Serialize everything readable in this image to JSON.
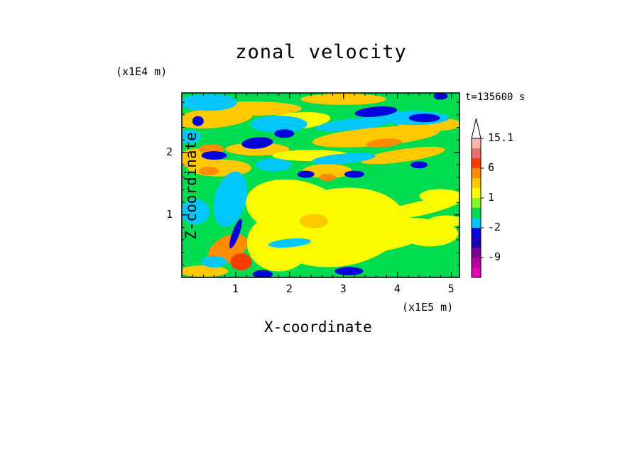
{
  "chart_data": {
    "type": "heatmap",
    "title": "zonal velocity",
    "xlabel": "X-coordinate",
    "ylabel": "Z-coordinate",
    "x_multiplier": "(x1E5 m)",
    "y_multiplier": "(x1E4 m)",
    "time_label": "t=135600 s",
    "xlim": [
      0,
      5.15
    ],
    "ylim": [
      0,
      2.95
    ],
    "x_ticks": [
      "1",
      "2",
      "3",
      "4",
      "5"
    ],
    "y_ticks": [
      "1",
      "2"
    ],
    "colorbar": {
      "labels": [
        "15.1",
        "6",
        "1",
        "-2",
        "-9"
      ],
      "levels": [
        -15,
        -12,
        -9,
        -6,
        -4,
        -2,
        -1,
        0,
        1,
        2,
        4,
        6,
        9,
        12,
        15.1
      ],
      "colors": [
        "#e600b4",
        "#b400a0",
        "#780096",
        "#1e00b4",
        "#0000dc",
        "#00c8ff",
        "#00dc50",
        "#7dfa28",
        "#fafa00",
        "#ffc800",
        "#ff8c00",
        "#ff3c00",
        "#f06e6e",
        "#ffb4b4"
      ],
      "extend": "max",
      "max_color": "#ffffff"
    },
    "field_colors": {
      "strong_neg": "#0000dc",
      "neg": "#00c8ff",
      "zero": "#00dc50",
      "weak_pos": "#fafa00",
      "pos": "#ffc800",
      "strong_pos": "#ff8c00",
      "very_strong_pos": "#ff3c00"
    }
  }
}
